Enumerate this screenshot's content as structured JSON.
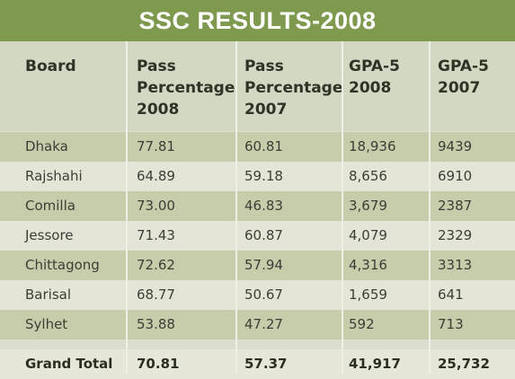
{
  "title": "SSC RESULTS-2008",
  "table": {
    "header": [
      [
        "Board"
      ],
      [
        "Pass",
        "Percentage",
        "2008"
      ],
      [
        "Pass",
        "Percentage",
        "2007"
      ],
      [
        "GPA-5",
        "2008"
      ],
      [
        "GPA-5",
        "2007"
      ]
    ],
    "rows": [
      [
        "Dhaka",
        "77.81",
        "60.81",
        "18,936",
        "9439"
      ],
      [
        "Rajshahi",
        "64.89",
        "59.18",
        "8,656",
        "6910"
      ],
      [
        "Comilla",
        "73.00",
        "46.83",
        "3,679",
        "2387"
      ],
      [
        "Jessore",
        "71.43",
        "60.87",
        "4,079",
        "2329"
      ],
      [
        "Chittagong",
        "72.62",
        "57.94",
        "4,316",
        "3313"
      ],
      [
        "Barisal",
        "68.77",
        "50.67",
        "1,659",
        "641"
      ],
      [
        "Sylhet",
        "53.88",
        "47.27",
        "592",
        "713"
      ]
    ],
    "total": [
      "Grand Total",
      "70.81",
      "57.37",
      "41,917",
      "25,732"
    ]
  }
}
